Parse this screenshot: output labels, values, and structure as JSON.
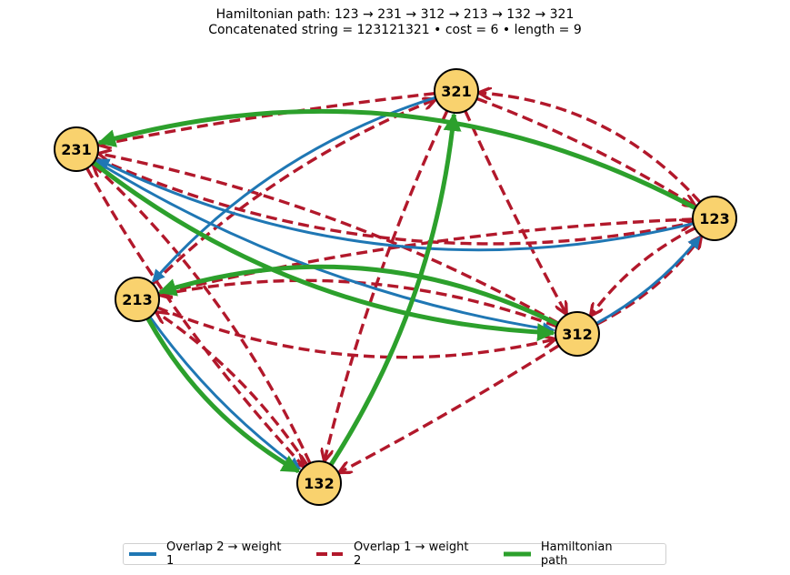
{
  "title": {
    "line1": "Hamiltonian path: 123 → 231 → 312 → 213 → 132 → 321",
    "line2": "Concatenated string = 123121321  •  cost = 6  •  length = 9"
  },
  "colors": {
    "overlap2": "#1f77b4",
    "overlap1": "#b2182b",
    "hamiltonian": "#2ca02c",
    "node_fill": "#f9d26e",
    "node_stroke": "#000000"
  },
  "nodes": [
    {
      "id": "n123",
      "label": "123"
    },
    {
      "id": "n231",
      "label": "231"
    },
    {
      "id": "n312",
      "label": "312"
    },
    {
      "id": "n213",
      "label": "213"
    },
    {
      "id": "n132",
      "label": "132"
    },
    {
      "id": "n321",
      "label": "321"
    }
  ],
  "edges": [
    {
      "from": "n123",
      "to": "n231",
      "kind": "overlap2"
    },
    {
      "from": "n231",
      "to": "n312",
      "kind": "overlap2"
    },
    {
      "from": "n312",
      "to": "n123",
      "kind": "overlap2"
    },
    {
      "from": "n321",
      "to": "n213",
      "kind": "overlap2"
    },
    {
      "from": "n213",
      "to": "n132",
      "kind": "overlap2"
    },
    {
      "from": "n132",
      "to": "n321",
      "kind": "overlap2"
    },
    {
      "from": "n123",
      "to": "n321",
      "kind": "overlap1"
    },
    {
      "from": "n321",
      "to": "n123",
      "kind": "overlap1"
    },
    {
      "from": "n123",
      "to": "n312",
      "kind": "overlap1"
    },
    {
      "from": "n312",
      "to": "n123",
      "kind": "overlap1"
    },
    {
      "from": "n231",
      "to": "n123",
      "kind": "overlap1"
    },
    {
      "from": "n123",
      "to": "n213",
      "kind": "overlap1"
    },
    {
      "from": "n231",
      "to": "n132",
      "kind": "overlap1"
    },
    {
      "from": "n132",
      "to": "n231",
      "kind": "overlap1"
    },
    {
      "from": "n312",
      "to": "n231",
      "kind": "overlap1"
    },
    {
      "from": "n312",
      "to": "n213",
      "kind": "overlap1"
    },
    {
      "from": "n213",
      "to": "n312",
      "kind": "overlap1"
    },
    {
      "from": "n312",
      "to": "n132",
      "kind": "overlap1"
    },
    {
      "from": "n213",
      "to": "n321",
      "kind": "overlap1"
    },
    {
      "from": "n132",
      "to": "n213",
      "kind": "overlap1"
    },
    {
      "from": "n321",
      "to": "n132",
      "kind": "overlap1"
    },
    {
      "from": "n321",
      "to": "n231",
      "kind": "overlap1"
    },
    {
      "from": "n321",
      "to": "n312",
      "kind": "overlap1"
    },
    {
      "from": "n123",
      "to": "n231",
      "kind": "hamiltonian"
    },
    {
      "from": "n231",
      "to": "n312",
      "kind": "hamiltonian"
    },
    {
      "from": "n312",
      "to": "n213",
      "kind": "hamiltonian"
    },
    {
      "from": "n213",
      "to": "n132",
      "kind": "hamiltonian"
    },
    {
      "from": "n132",
      "to": "n321",
      "kind": "hamiltonian"
    }
  ],
  "legend": {
    "overlap2": "Overlap 2 → weight 1",
    "overlap1": "Overlap 1 → weight 2",
    "hamiltonian": "Hamiltonian path"
  }
}
